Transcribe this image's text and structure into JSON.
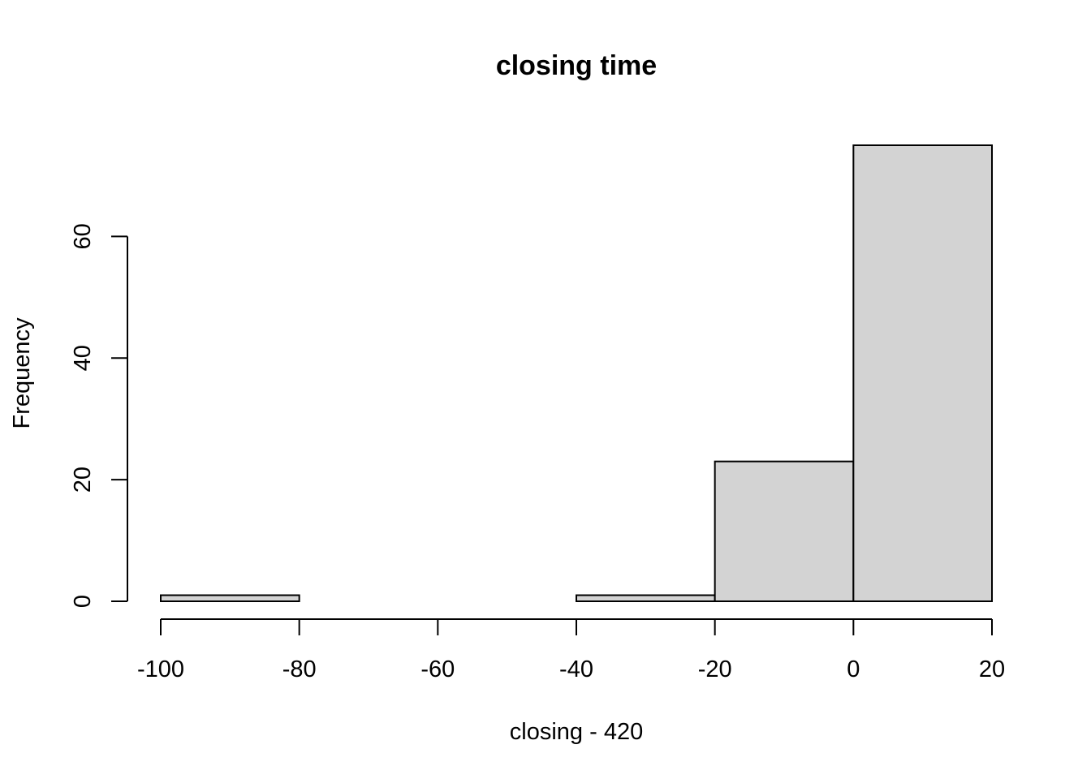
{
  "chart_data": {
    "type": "bar",
    "title": "closing time",
    "xlabel": "closing - 420",
    "ylabel": "Frequency",
    "bins": [
      {
        "from": -100,
        "to": -80,
        "count": 1
      },
      {
        "from": -80,
        "to": -60,
        "count": 0
      },
      {
        "from": -60,
        "to": -40,
        "count": 0
      },
      {
        "from": -40,
        "to": -20,
        "count": 1
      },
      {
        "from": -20,
        "to": 0,
        "count": 23
      },
      {
        "from": 0,
        "to": 20,
        "count": 75
      }
    ],
    "xticks": [
      -100,
      -80,
      -60,
      -40,
      -20,
      0,
      20
    ],
    "yticks": [
      0,
      20,
      40,
      60
    ],
    "xlim": [
      -100,
      20
    ],
    "ylim": [
      0,
      75
    ],
    "grid": false,
    "colors": {
      "bar_fill": "#d3d3d3",
      "bar_stroke": "#000000"
    }
  }
}
